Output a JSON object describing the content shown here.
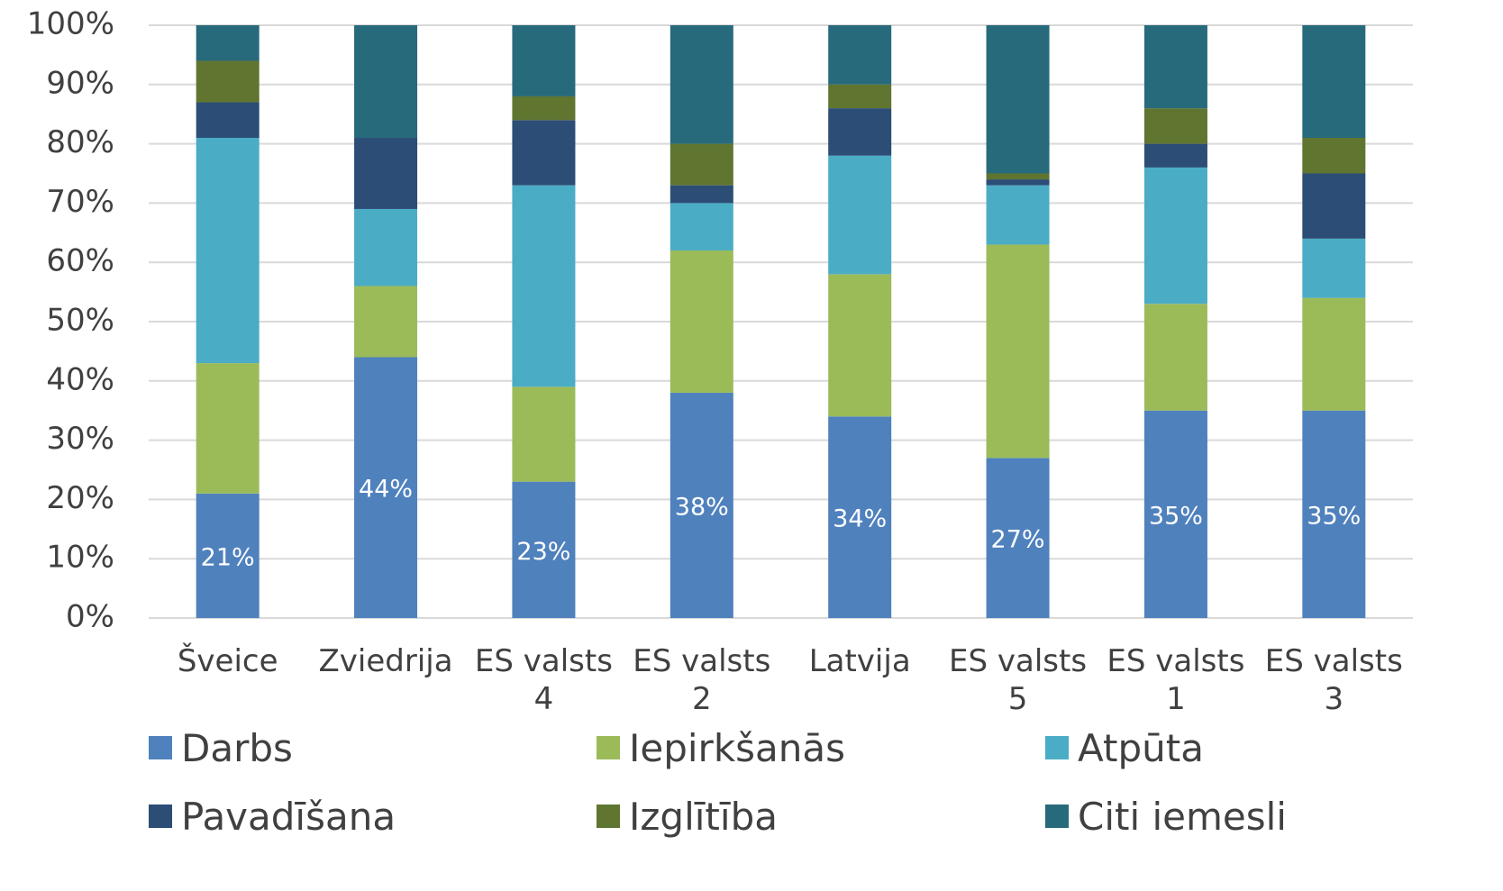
{
  "chart_data": {
    "type": "stacked_bar",
    "categories": [
      "Šveice",
      "Zviedrija",
      "ES valsts 4",
      "ES valsts 2",
      "Latvija",
      "ES valsts 5",
      "ES valsts 1",
      "ES valsts 3"
    ],
    "series": [
      {
        "name": "Darbs",
        "color": "#4f81bd",
        "values": [
          21,
          44,
          23,
          38,
          34,
          27,
          35,
          35
        ],
        "value_labels": [
          "21%",
          "44%",
          "23%",
          "38%",
          "34%",
          "27%",
          "35%",
          "35%"
        ]
      },
      {
        "name": "Iepirkšanās",
        "color": "#9bbb59",
        "values": [
          22,
          12,
          16,
          24,
          24,
          36,
          18,
          19
        ]
      },
      {
        "name": "Atpūta",
        "color": "#4bacc6",
        "values": [
          38,
          13,
          34,
          8,
          20,
          10,
          23,
          10
        ]
      },
      {
        "name": "Pavadīšana",
        "color": "#2c4d75",
        "values": [
          6,
          12,
          11,
          3,
          8,
          1,
          4,
          11
        ]
      },
      {
        "name": "Izglītība",
        "color": "#5f7530",
        "values": [
          7,
          0,
          4,
          7,
          4,
          1,
          6,
          6
        ]
      },
      {
        "name": "Citi iemesli",
        "color": "#276a7c",
        "values": [
          6,
          19,
          12,
          20,
          10,
          25,
          14,
          19
        ]
      }
    ],
    "ylim": [
      0,
      100
    ],
    "yticks": [
      {
        "value": 0,
        "label": "0%"
      },
      {
        "value": 10,
        "label": "10%"
      },
      {
        "value": 20,
        "label": "20%"
      },
      {
        "value": 30,
        "label": "30%"
      },
      {
        "value": 40,
        "label": "40%"
      },
      {
        "value": 50,
        "label": "50%"
      },
      {
        "value": 60,
        "label": "60%"
      },
      {
        "value": 70,
        "label": "70%"
      },
      {
        "value": 80,
        "label": "80%"
      },
      {
        "value": 90,
        "label": "90%"
      },
      {
        "value": 100,
        "label": "100%"
      }
    ],
    "grid": true
  }
}
